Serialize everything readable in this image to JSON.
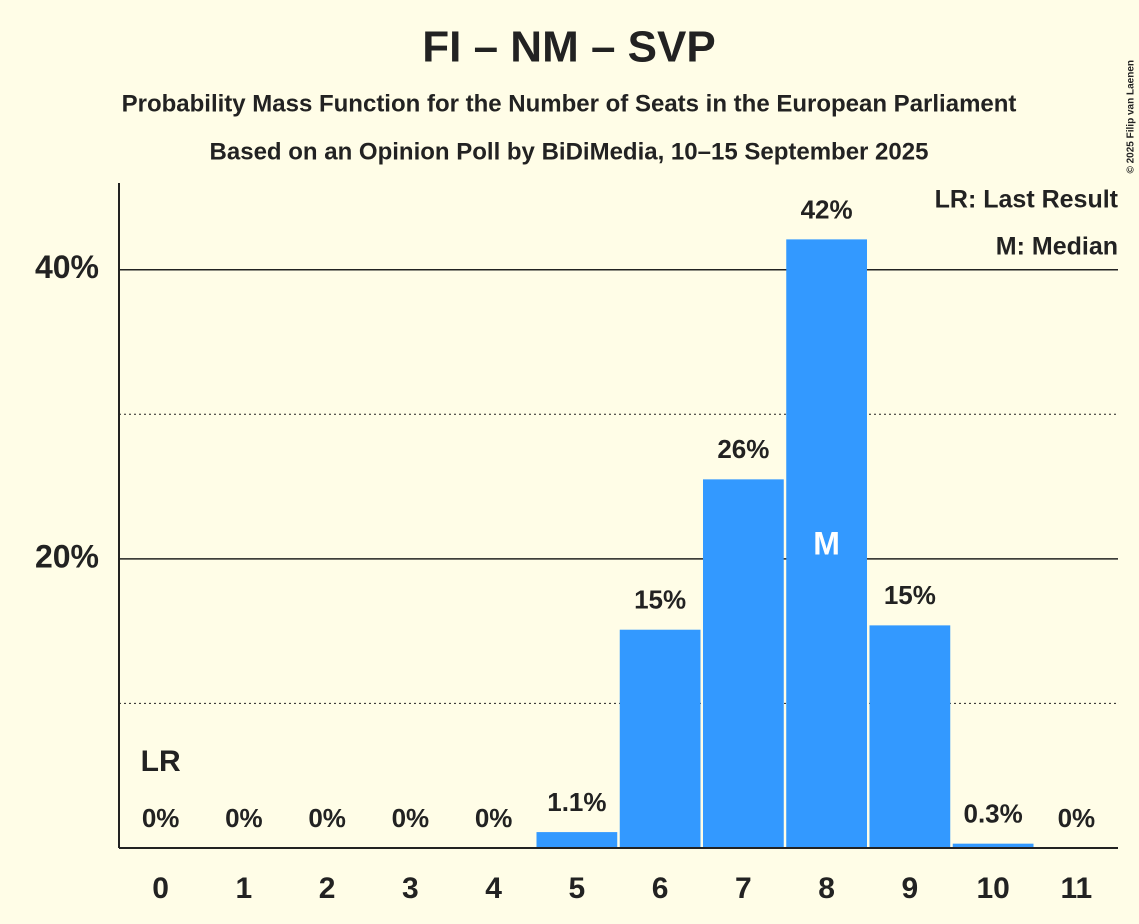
{
  "chart_data": {
    "type": "bar",
    "title": "FI – NM – SVP",
    "subtitle": "Probability Mass Function for the Number of Seats in the European Parliament",
    "subtitle2": "Based on an Opinion Poll by BiDiMedia, 10–15 September 2025",
    "copyright": "© 2025 Filip van Laenen",
    "categories": [
      "0",
      "1",
      "2",
      "3",
      "4",
      "5",
      "6",
      "7",
      "8",
      "9",
      "10",
      "11"
    ],
    "values": [
      0,
      0,
      0,
      0,
      0,
      1.1,
      15.1,
      25.5,
      42.1,
      15.4,
      0.3,
      0
    ],
    "value_labels": [
      "0%",
      "0%",
      "0%",
      "0%",
      "0%",
      "1.1%",
      "15%",
      "26%",
      "42%",
      "15%",
      "0.3%",
      "0%"
    ],
    "color": "#3399ff",
    "ylim": [
      0,
      46
    ],
    "yticks": [
      {
        "value": 20,
        "label": "20%"
      },
      {
        "value": 40,
        "label": "40%"
      }
    ],
    "minor_yticks": [
      10,
      30
    ],
    "grid": true,
    "last_result": {
      "label": "LR",
      "seats": 0
    },
    "median": {
      "label": "M",
      "seats": 8
    },
    "legend": [
      "LR: Last Result",
      "M: Median"
    ]
  }
}
